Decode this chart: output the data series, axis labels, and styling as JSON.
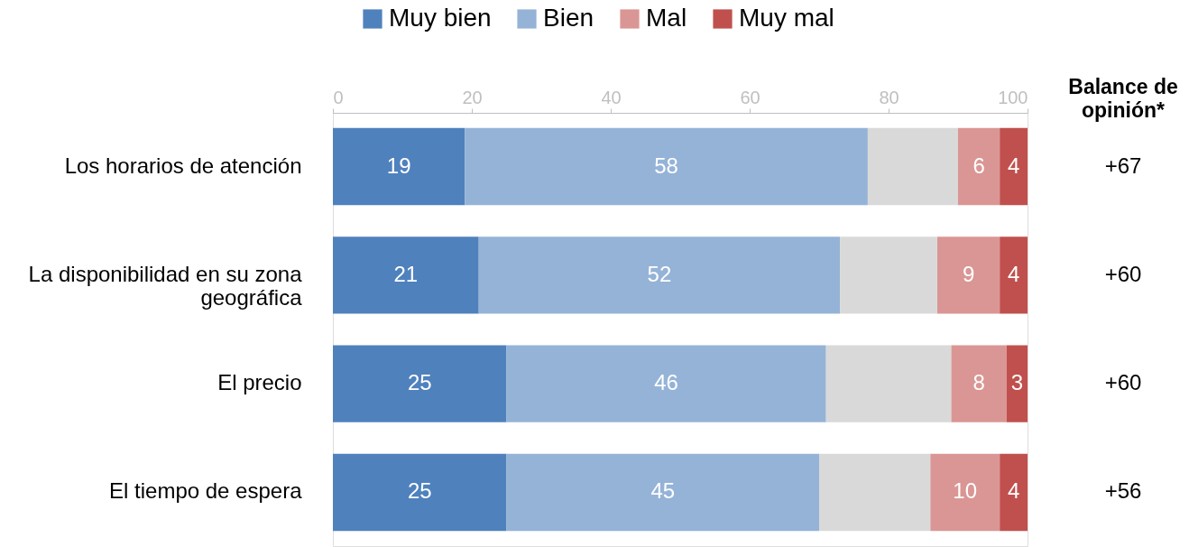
{
  "chart_data": {
    "type": "bar",
    "orientation": "horizontal",
    "stacked": true,
    "categories": [
      "Los horarios de atención",
      "La disponibilidad en su zona geográfica",
      "El precio",
      "El tiempo de espera"
    ],
    "series": [
      {
        "name": "Muy bien",
        "color": "#4f81bd",
        "values": [
          19,
          21,
          25,
          25
        ],
        "value_labels": [
          "19",
          "21",
          "25",
          "25"
        ]
      },
      {
        "name": "Bien",
        "color": "#95b3d7",
        "values": [
          58,
          52,
          46,
          45
        ],
        "value_labels": [
          "58",
          "52",
          "46",
          "45"
        ]
      },
      {
        "color": "#d9d9d9",
        "values": [
          13,
          14,
          18,
          16
        ],
        "value_labels": [
          null,
          null,
          null,
          null
        ]
      },
      {
        "name": "Mal",
        "color": "#da9694",
        "values": [
          6,
          9,
          8,
          10
        ],
        "value_labels": [
          "6",
          "9",
          "8",
          "10"
        ]
      },
      {
        "name": "Muy mal",
        "color": "#c0504d",
        "values": [
          4,
          4,
          3,
          4
        ],
        "value_labels": [
          "4",
          "4",
          "3",
          "4"
        ]
      }
    ],
    "xlim": [
      0,
      100
    ],
    "xticks": [
      0,
      20,
      40,
      60,
      80,
      100
    ],
    "grid": false,
    "legend": "top",
    "annotations": [
      "Balance de opinión*",
      "+67",
      "+60",
      "+60",
      "+56"
    ]
  }
}
